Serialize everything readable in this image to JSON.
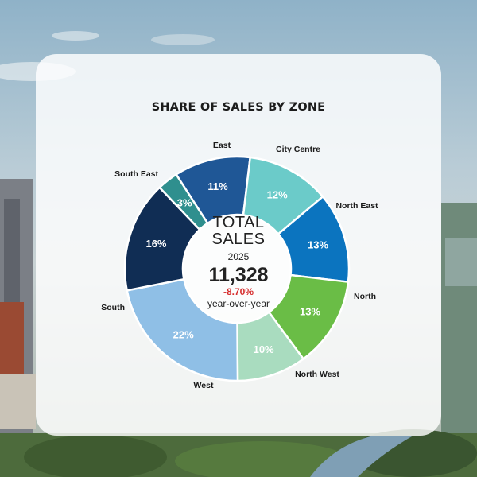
{
  "title": "SHARE OF SALES BY ZONE",
  "center": {
    "line1": "TOTAL",
    "line2": "SALES",
    "year": "2025",
    "value": "11,328",
    "change": "-8.70%",
    "change_label": "year-over-year"
  },
  "chart_data": {
    "type": "pie",
    "title": "SHARE OF SALES BY ZONE",
    "donut": true,
    "categories": [
      "City Centre",
      "North East",
      "North",
      "North West",
      "West",
      "South",
      "South East",
      "East"
    ],
    "values": [
      11,
      12,
      13,
      13,
      10,
      22,
      16,
      3
    ],
    "value_labels": [
      "11%",
      "12%",
      "13%",
      "13%",
      "10%",
      "22%",
      "16%",
      "3%"
    ],
    "colors": [
      "#1f5796",
      "#6bcbc9",
      "#0b74bf",
      "#6abd46",
      "#a9dcbf",
      "#8fbfe6",
      "#102d54",
      "#2f8f8e"
    ],
    "label_colors": [
      "#ffffff",
      "#ffffff",
      "#ffffff",
      "#ffffff",
      "#ffffff",
      "#ffffff",
      "#ffffff",
      "#ffffff"
    ]
  }
}
